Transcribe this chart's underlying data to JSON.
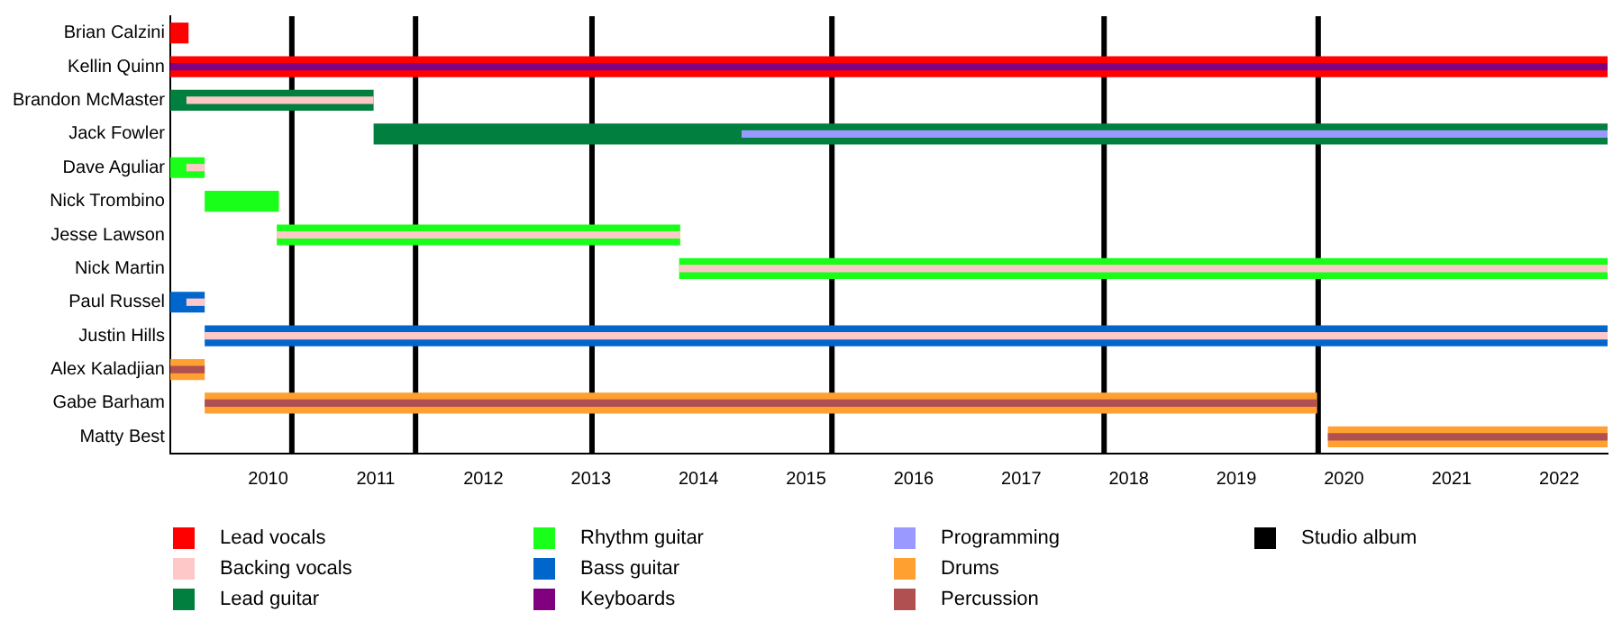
{
  "chart_data": {
    "type": "bar",
    "orientation": "horizontal",
    "categories": [
      "Brian Calzini",
      "Kellin Quinn",
      "Brandon McMaster",
      "Jack Fowler",
      "Dave Aguliar",
      "Nick Trombino",
      "Jesse Lawson",
      "Nick Martin",
      "Paul Russel",
      "Justin Hills",
      "Alex Kaladjian",
      "Gabe Barham",
      "Matty Best"
    ],
    "series": [
      {
        "name": "Lead vocals",
        "color": "#ff0000",
        "base": [
          2009.09,
          2009.09,
          null,
          null,
          null,
          null,
          null,
          null,
          null,
          null,
          null,
          null,
          null
        ],
        "values": [
          0.17,
          13.36,
          null,
          null,
          null,
          null,
          null,
          null,
          null,
          null,
          null,
          null,
          null
        ]
      },
      {
        "name": "Backing vocals",
        "color": "#ffc8c8",
        "base": [
          null,
          null,
          2009.24,
          null,
          2009.24,
          null,
          2010.08,
          2013.82,
          2009.24,
          2009.41,
          null,
          null,
          null
        ],
        "values": [
          null,
          null,
          1.74,
          null,
          0.17,
          null,
          3.75,
          8.63,
          0.17,
          13.04,
          null,
          null,
          null
        ]
      },
      {
        "name": "Lead guitar",
        "color": "#007f3f",
        "base": [
          null,
          null,
          2009.09,
          2010.98,
          null,
          null,
          null,
          null,
          null,
          null,
          null,
          null,
          null
        ],
        "values": [
          null,
          null,
          1.89,
          11.47,
          null,
          null,
          null,
          null,
          null,
          null,
          null,
          null,
          null
        ]
      },
      {
        "name": "Rhythm guitar",
        "color": "#19ff19",
        "base": [
          null,
          null,
          null,
          null,
          2009.09,
          2009.41,
          2010.08,
          2013.82,
          null,
          null,
          null,
          null,
          null
        ],
        "values": [
          null,
          null,
          null,
          null,
          0.32,
          0.69,
          3.75,
          8.63,
          null,
          null,
          null,
          null,
          null
        ]
      },
      {
        "name": "Bass guitar",
        "color": "#0066cc",
        "base": [
          null,
          null,
          null,
          null,
          null,
          null,
          null,
          null,
          2009.09,
          2009.41,
          null,
          null,
          null
        ],
        "values": [
          null,
          null,
          null,
          null,
          null,
          null,
          null,
          null,
          0.32,
          13.04,
          null,
          null,
          null
        ]
      },
      {
        "name": "Keyboards",
        "color": "#800080",
        "base": [
          null,
          2009.09,
          null,
          null,
          null,
          null,
          null,
          null,
          null,
          null,
          null,
          null,
          null
        ],
        "values": [
          null,
          13.36,
          null,
          null,
          null,
          null,
          null,
          null,
          null,
          null,
          null,
          null,
          null
        ]
      },
      {
        "name": "Programming",
        "color": "#9999ff",
        "base": [
          null,
          null,
          null,
          2014.4,
          null,
          null,
          null,
          null,
          null,
          null,
          null,
          null,
          null
        ],
        "values": [
          null,
          null,
          null,
          8.05,
          null,
          null,
          null,
          null,
          null,
          null,
          null,
          null,
          null
        ]
      },
      {
        "name": "Drums",
        "color": "#ffa030",
        "base": [
          null,
          null,
          null,
          null,
          null,
          null,
          null,
          null,
          null,
          null,
          2009.09,
          2009.41,
          2019.85
        ],
        "values": [
          null,
          null,
          null,
          null,
          null,
          null,
          null,
          null,
          null,
          null,
          0.32,
          10.34,
          2.6
        ]
      },
      {
        "name": "Percussion",
        "color": "#b05050",
        "base": [
          null,
          null,
          null,
          null,
          null,
          null,
          null,
          null,
          null,
          null,
          2009.09,
          2009.41,
          2019.85
        ],
        "values": [
          null,
          null,
          null,
          null,
          null,
          null,
          null,
          null,
          null,
          null,
          0.32,
          10.34,
          2.6
        ]
      }
    ],
    "ref_lines": [
      {
        "axis": "x",
        "value": 2010.22,
        "label": "Studio album",
        "color": "#000000"
      },
      {
        "axis": "x",
        "value": 2011.37,
        "color": "#000000"
      },
      {
        "axis": "x",
        "value": 2013.01,
        "color": "#000000"
      },
      {
        "axis": "x",
        "value": 2015.24,
        "color": "#000000"
      },
      {
        "axis": "x",
        "value": 2017.77,
        "color": "#000000"
      },
      {
        "axis": "x",
        "value": 2019.76,
        "color": "#000000"
      }
    ],
    "xlim": [
      2009.09,
      2022.45
    ],
    "xticks": [
      2010,
      2011,
      2012,
      2013,
      2014,
      2015,
      2016,
      2017,
      2018,
      2019,
      2020,
      2021,
      2022
    ],
    "grid": false,
    "legend": "bottom"
  }
}
